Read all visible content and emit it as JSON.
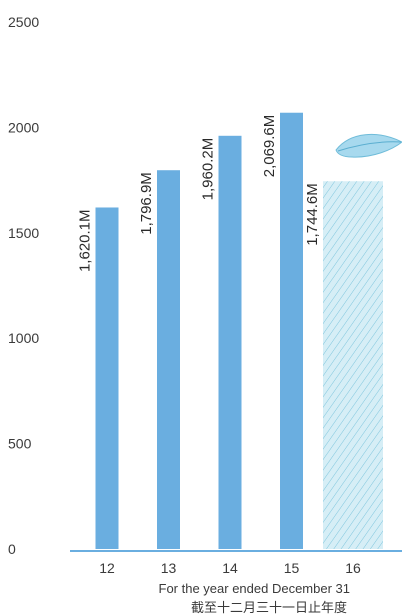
{
  "chart_data": {
    "type": "bar",
    "categories": [
      "12",
      "13",
      "14",
      "15",
      "16"
    ],
    "values": [
      1620.1,
      1796.9,
      1960.2,
      2069.6,
      1744.6
    ],
    "data_labels": [
      "1,620.1M",
      "1,796.9M",
      "1,960.2M",
      "2,069.6M",
      "1,744.6M"
    ],
    "y_ticks": [
      "0",
      "500",
      "1000",
      "1500",
      "2000",
      "2500"
    ],
    "ylim": [
      0,
      2500
    ],
    "grid": false,
    "bar_color": "#6aaee0",
    "highlight_color": "#8fd0e6",
    "xlabel": "For the year ended December 31",
    "xlabel_secondary": "截至十二月三十一日止年度"
  }
}
